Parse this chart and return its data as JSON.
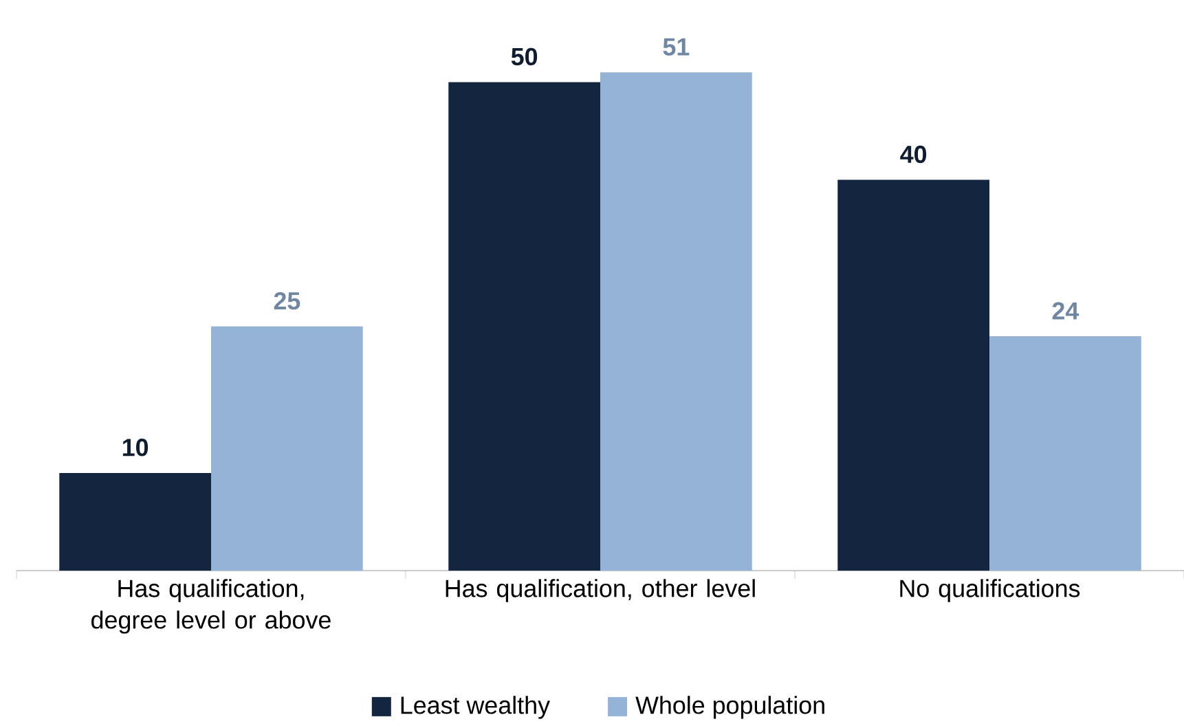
{
  "chart_data": {
    "type": "bar",
    "categories": [
      "Has qualification, degree level or above",
      "Has qualification, other level",
      "No qualifications"
    ],
    "series": [
      {
        "name": "Least wealthy",
        "color": "#14263f",
        "values": [
          10,
          50,
          40
        ]
      },
      {
        "name": "Whole population",
        "color": "#95b3d7",
        "values": [
          25,
          51,
          24
        ]
      }
    ],
    "data_labels": true,
    "legend": "bottom",
    "grid": false
  }
}
